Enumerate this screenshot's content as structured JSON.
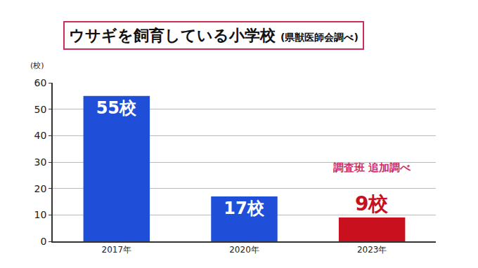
{
  "chart_data": {
    "type": "bar",
    "title": "ウサギを飼育している小学校",
    "subtitle": "(県獣医師会調べ)",
    "ylabel": "(校)",
    "categories": [
      "2017年",
      "2020年",
      "2023年"
    ],
    "values": [
      55,
      17,
      9
    ],
    "value_labels": [
      "55校",
      "17校",
      "9校"
    ],
    "colors": [
      "#1f4fd8",
      "#1f4fd8",
      "#c8101e"
    ],
    "data_labels": true,
    "annotations": [
      {
        "text": "調査班 追加調べ",
        "x": "2023年"
      }
    ],
    "ylim": [
      0,
      60
    ],
    "yticks": [
      0,
      10,
      20,
      30,
      40,
      50,
      60
    ],
    "grid": true
  }
}
